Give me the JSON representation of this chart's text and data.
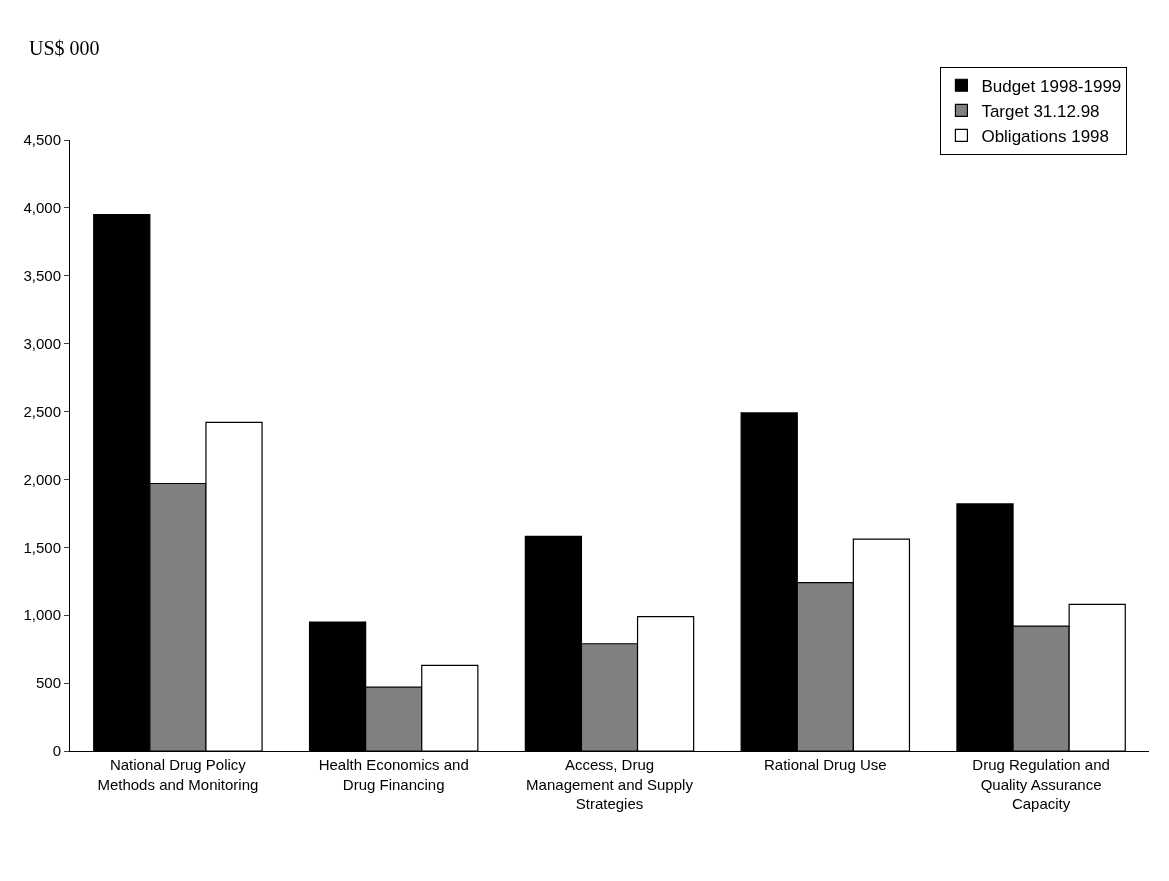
{
  "chart_data": {
    "type": "bar",
    "annotations": [
      "US$ 000"
    ],
    "categories": [
      "National Drug Policy Methods and Monitoring",
      "Health Economics and Drug Financing",
      "Access, Drug Management and Supply Strategies",
      "Rational Drug Use",
      "Drug Regulation and Quality Assurance Capacity"
    ],
    "series": [
      {
        "name": "Budget 1998-1999",
        "color": "#000000",
        "values": [
          3950,
          950,
          1580,
          2490,
          1820
        ]
      },
      {
        "name": "Target 31.12.98",
        "color": "#808080",
        "values": [
          1970,
          470,
          790,
          1240,
          920
        ]
      },
      {
        "name": "Obligations 1998",
        "color": "#ffffff",
        "values": [
          2420,
          630,
          990,
          1560,
          1080
        ]
      }
    ],
    "ylim": [
      0,
      4500
    ],
    "yticks": [
      {
        "value": 0,
        "label": "0"
      },
      {
        "value": 500,
        "label": "500"
      },
      {
        "value": 1000,
        "label": "1,000"
      },
      {
        "value": 1500,
        "label": "1,500"
      },
      {
        "value": 2000,
        "label": "2,000"
      },
      {
        "value": 2500,
        "label": "2,500"
      },
      {
        "value": 3000,
        "label": "3,000"
      },
      {
        "value": 3500,
        "label": "3,500"
      },
      {
        "value": 4000,
        "label": "4,000"
      },
      {
        "value": 4500,
        "label": "4,500"
      }
    ],
    "legend": "top right"
  }
}
